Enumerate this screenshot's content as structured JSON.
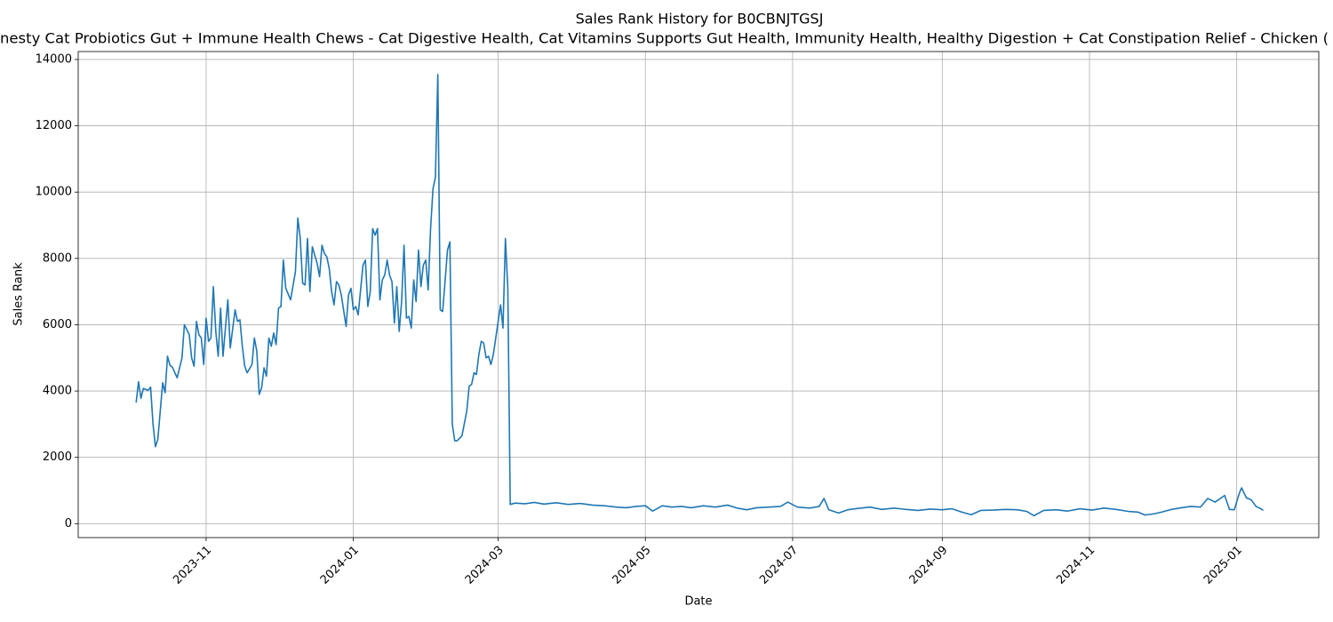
{
  "chart_data": {
    "type": "line",
    "title": "Sales Rank History for B0CBNJTGSJ",
    "subtitle": "nesty Cat Probiotics Gut + Immune Health Chews - Cat Digestive Health, Cat Vitamins Supports Gut Health, Immunity Health, Healthy Digestion + Cat Constipation Relief - Chicken (",
    "x_label": "Date",
    "y_label": "Sales Rank",
    "color": "#1f77b4",
    "grid": true,
    "xlim": [
      "2023-09-09",
      "2025-02-04"
    ],
    "ylim": [
      -420,
      14240
    ],
    "xticks": [
      {
        "value": "2023-11-01",
        "label": "2023-11"
      },
      {
        "value": "2024-01-01",
        "label": "2024-01"
      },
      {
        "value": "2024-03-01",
        "label": "2024-03"
      },
      {
        "value": "2024-05-01",
        "label": "2024-05"
      },
      {
        "value": "2024-07-01",
        "label": "2024-07"
      },
      {
        "value": "2024-09-01",
        "label": "2024-09"
      },
      {
        "value": "2024-11-01",
        "label": "2024-11"
      },
      {
        "value": "2025-01-01",
        "label": "2025-01"
      }
    ],
    "yticks": [
      0,
      2000,
      4000,
      6000,
      8000,
      10000,
      12000,
      14000
    ],
    "x": [
      "2023-10-03",
      "2023-10-04",
      "2023-10-05",
      "2023-10-06",
      "2023-10-08",
      "2023-10-09",
      "2023-10-10",
      "2023-10-11",
      "2023-10-12",
      "2023-10-13",
      "2023-10-14",
      "2023-10-15",
      "2023-10-16",
      "2023-10-17",
      "2023-10-18",
      "2023-10-20",
      "2023-10-22",
      "2023-10-23",
      "2023-10-25",
      "2023-10-26",
      "2023-10-27",
      "2023-10-28",
      "2023-10-29",
      "2023-10-30",
      "2023-10-31",
      "2023-11-01",
      "2023-11-02",
      "2023-11-03",
      "2023-11-04",
      "2023-11-05",
      "2023-11-06",
      "2023-11-07",
      "2023-11-08",
      "2023-11-10",
      "2023-11-11",
      "2023-11-13",
      "2023-11-14",
      "2023-11-15",
      "2023-11-16",
      "2023-11-17",
      "2023-11-18",
      "2023-11-20",
      "2023-11-21",
      "2023-11-22",
      "2023-11-23",
      "2023-11-24",
      "2023-11-25",
      "2023-11-26",
      "2023-11-27",
      "2023-11-28",
      "2023-11-29",
      "2023-11-30",
      "2023-12-01",
      "2023-12-02",
      "2023-12-03",
      "2023-12-04",
      "2023-12-06",
      "2023-12-08",
      "2023-12-09",
      "2023-12-10",
      "2023-12-11",
      "2023-12-12",
      "2023-12-13",
      "2023-12-14",
      "2023-12-15",
      "2023-12-17",
      "2023-12-18",
      "2023-12-19",
      "2023-12-20",
      "2023-12-21",
      "2023-12-22",
      "2023-12-23",
      "2023-12-24",
      "2023-12-25",
      "2023-12-26",
      "2023-12-27",
      "2023-12-29",
      "2023-12-30",
      "2023-12-31",
      "2024-01-01",
      "2024-01-02",
      "2024-01-03",
      "2024-01-05",
      "2024-01-06",
      "2024-01-07",
      "2024-01-08",
      "2024-01-09",
      "2024-01-10",
      "2024-01-11",
      "2024-01-12",
      "2024-01-13",
      "2024-01-14",
      "2024-01-15",
      "2024-01-16",
      "2024-01-17",
      "2024-01-18",
      "2024-01-19",
      "2024-01-20",
      "2024-01-21",
      "2024-01-22",
      "2024-01-23",
      "2024-01-24",
      "2024-01-25",
      "2024-01-26",
      "2024-01-27",
      "2024-01-28",
      "2024-01-29",
      "2024-01-30",
      "2024-01-31",
      "2024-02-01",
      "2024-02-02",
      "2024-02-03",
      "2024-02-04",
      "2024-02-05",
      "2024-02-06",
      "2024-02-07",
      "2024-02-08",
      "2024-02-09",
      "2024-02-10",
      "2024-02-11",
      "2024-02-12",
      "2024-02-13",
      "2024-02-15",
      "2024-02-17",
      "2024-02-18",
      "2024-02-19",
      "2024-02-20",
      "2024-02-21",
      "2024-02-22",
      "2024-02-23",
      "2024-02-24",
      "2024-02-25",
      "2024-02-26",
      "2024-02-27",
      "2024-02-28",
      "2024-02-29",
      "2024-03-01",
      "2024-03-02",
      "2024-03-03",
      "2024-03-04",
      "2024-03-05",
      "2024-03-06",
      "2024-03-08",
      "2024-03-12",
      "2024-03-16",
      "2024-03-20",
      "2024-03-25",
      "2024-03-30",
      "2024-04-04",
      "2024-04-09",
      "2024-04-14",
      "2024-04-19",
      "2024-04-23",
      "2024-04-27",
      "2024-05-01",
      "2024-05-04",
      "2024-05-08",
      "2024-05-12",
      "2024-05-16",
      "2024-05-20",
      "2024-05-25",
      "2024-05-30",
      "2024-06-04",
      "2024-06-08",
      "2024-06-12",
      "2024-06-16",
      "2024-06-21",
      "2024-06-26",
      "2024-06-29",
      "2024-07-03",
      "2024-07-08",
      "2024-07-12",
      "2024-07-14",
      "2024-07-16",
      "2024-07-20",
      "2024-07-24",
      "2024-07-28",
      "2024-08-02",
      "2024-08-07",
      "2024-08-12",
      "2024-08-17",
      "2024-08-22",
      "2024-08-27",
      "2024-09-01",
      "2024-09-05",
      "2024-09-09",
      "2024-09-13",
      "2024-09-17",
      "2024-09-22",
      "2024-09-27",
      "2024-10-02",
      "2024-10-06",
      "2024-10-09",
      "2024-10-13",
      "2024-10-18",
      "2024-10-23",
      "2024-10-28",
      "2024-11-02",
      "2024-11-07",
      "2024-11-12",
      "2024-11-17",
      "2024-11-21",
      "2024-11-24",
      "2024-11-28",
      "2024-12-01",
      "2024-12-05",
      "2024-12-09",
      "2024-12-13",
      "2024-12-17",
      "2024-12-20",
      "2024-12-23",
      "2024-12-27",
      "2024-12-29",
      "2024-12-31",
      "2025-01-02",
      "2025-01-03",
      "2025-01-05",
      "2025-01-07",
      "2025-01-09",
      "2025-01-11",
      "2025-01-12"
    ],
    "values": [
      3650,
      4280,
      3780,
      4080,
      4020,
      4120,
      3000,
      2320,
      2550,
      3400,
      4250,
      3950,
      5050,
      4780,
      4720,
      4400,
      5000,
      6000,
      5700,
      5000,
      4750,
      6100,
      5700,
      5600,
      4800,
      6200,
      5500,
      5600,
      7150,
      5800,
      5050,
      6500,
      5050,
      6750,
      5300,
      6450,
      6100,
      6150,
      5350,
      4750,
      4550,
      4800,
      5600,
      5200,
      3900,
      4100,
      4700,
      4450,
      5600,
      5350,
      5750,
      5400,
      6500,
      6550,
      7950,
      7100,
      6750,
      7600,
      9220,
      8600,
      7250,
      7200,
      8600,
      7000,
      8350,
      7850,
      7450,
      8400,
      8150,
      8050,
      7700,
      7000,
      6600,
      7300,
      7200,
      6900,
      5950,
      6900,
      7100,
      6450,
      6550,
      6300,
      7800,
      7950,
      6550,
      7000,
      8900,
      8700,
      8900,
      6750,
      7350,
      7500,
      7950,
      7500,
      7300,
      6050,
      7150,
      5800,
      6700,
      8400,
      6200,
      6250,
      5900,
      7350,
      6700,
      8250,
      7150,
      7800,
      7950,
      7050,
      8900,
      10100,
      10450,
      13550,
      6450,
      6400,
      7300,
      8250,
      8500,
      3000,
      2500,
      2500,
      2650,
      3400,
      4150,
      4200,
      4550,
      4500,
      5100,
      5500,
      5450,
      5000,
      5050,
      4800,
      5100,
      5600,
      6100,
      6600,
      5900,
      8600,
      7100,
      580,
      620,
      600,
      640,
      590,
      630,
      580,
      610,
      560,
      540,
      500,
      480,
      520,
      540,
      380,
      540,
      500,
      520,
      480,
      540,
      500,
      560,
      470,
      420,
      480,
      500,
      520,
      650,
      500,
      470,
      520,
      760,
      420,
      320,
      420,
      460,
      500,
      430,
      470,
      430,
      400,
      440,
      420,
      450,
      350,
      270,
      400,
      410,
      430,
      420,
      370,
      240,
      400,
      420,
      380,
      450,
      410,
      470,
      430,
      370,
      350,
      260,
      300,
      350,
      430,
      480,
      520,
      500,
      760,
      650,
      850,
      430,
      420,
      900,
      1080,
      780,
      720,
      520,
      450,
      400
    ]
  }
}
